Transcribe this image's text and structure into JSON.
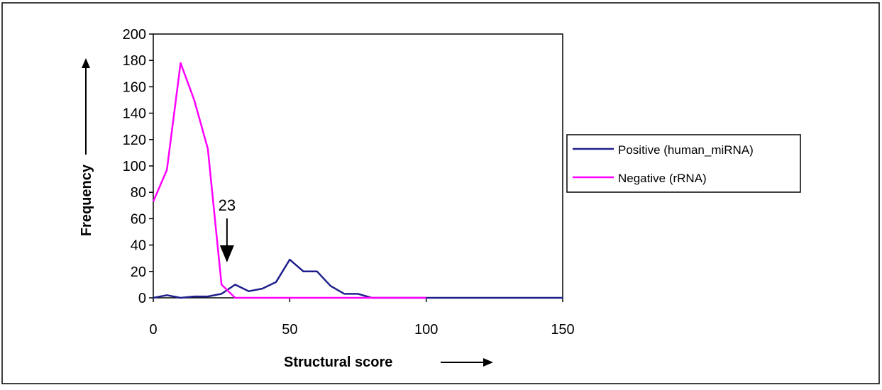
{
  "chart_data": {
    "type": "line",
    "xlabel": "Structural score",
    "ylabel": "Frequency",
    "xlim": [
      0,
      150
    ],
    "ylim": [
      0,
      200
    ],
    "xticks": [
      0,
      50,
      100,
      150
    ],
    "yticks": [
      0,
      20,
      40,
      60,
      80,
      100,
      120,
      140,
      160,
      180,
      200
    ],
    "grid": false,
    "legend_position": "right",
    "annotation": {
      "text": "23",
      "x": 27
    },
    "series": [
      {
        "name": "Positive (human_miRNA)",
        "color": "#1f1f8c",
        "x": [
          0,
          5,
          10,
          15,
          20,
          25,
          30,
          35,
          40,
          45,
          50,
          55,
          60,
          65,
          70,
          75,
          80,
          85,
          90,
          95,
          100,
          105,
          110,
          115,
          120,
          125,
          130,
          135,
          140,
          145,
          150
        ],
        "y": [
          0,
          2,
          0,
          1,
          1,
          3,
          10,
          5,
          7,
          12,
          29,
          20,
          20,
          9,
          3,
          3,
          0,
          0,
          0,
          0,
          0,
          0,
          0,
          0,
          0,
          0,
          0,
          0,
          0,
          0,
          0
        ]
      },
      {
        "name": "Negative (rRNA)",
        "color": "#ff00ff",
        "x": [
          0,
          5,
          10,
          15,
          20,
          25,
          30,
          35,
          40,
          45,
          50,
          55,
          60,
          65,
          70,
          75,
          80,
          85,
          90,
          95,
          100
        ],
        "y": [
          73,
          97,
          178,
          150,
          113,
          10,
          0,
          0,
          0,
          0,
          0,
          0,
          0,
          0,
          0,
          0,
          0,
          0,
          0,
          0,
          0
        ]
      }
    ]
  }
}
